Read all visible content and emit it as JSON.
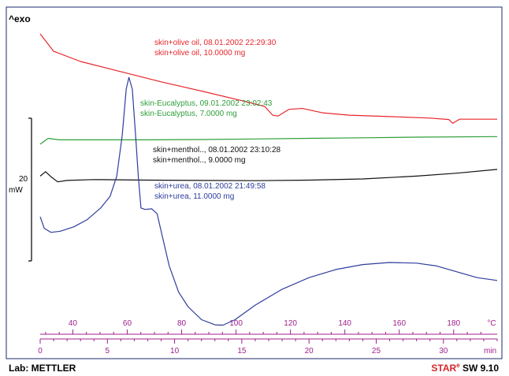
{
  "header": {
    "exo_label": "^exo"
  },
  "footer": {
    "lab_label": "Lab: METTLER",
    "software_star": "STAR",
    "software_sup": "e",
    "software_rest": " SW 9.10"
  },
  "scale_bar": {
    "value": "20",
    "unit": "mW"
  },
  "colors": {
    "olive": "#e8262b",
    "eucalyptus": "#2e9e3a",
    "menthol": "#111111",
    "urea": "#2d3d9c",
    "temp_axis": "#a0208e",
    "time_axis": "#a0208e",
    "frame": "#1e2a6e",
    "scale_bar": "#111111"
  },
  "chart_data": {
    "type": "line",
    "title": "",
    "xlabel": "min",
    "x_range": [
      0,
      34
    ],
    "x_ticks": [
      0,
      5,
      10,
      15,
      20,
      25,
      30
    ],
    "x_unit": "min",
    "temp_axis": {
      "unit": "°C",
      "ticks": [
        40,
        60,
        80,
        100,
        120,
        140,
        160,
        180
      ],
      "range": [
        28,
        196
      ]
    },
    "y_range": [
      0,
      100
    ],
    "series": [
      {
        "name": "skin+olive oil",
        "legend_lines": [
          "skin+olive oil, 08.01.2002 22:29:30",
          "skin+olive oil, 10.0000 mg"
        ],
        "color_key": "olive",
        "points": [
          [
            0,
            97
          ],
          [
            1,
            91
          ],
          [
            3,
            87.5
          ],
          [
            6,
            84
          ],
          [
            9,
            80.5
          ],
          [
            12,
            77.3
          ],
          [
            15,
            74
          ],
          [
            16.7,
            72
          ],
          [
            17.3,
            69
          ],
          [
            17.7,
            68.7
          ],
          [
            18.5,
            71
          ],
          [
            19.5,
            71.3
          ],
          [
            21,
            69.8
          ],
          [
            23,
            69
          ],
          [
            26,
            68.5
          ],
          [
            29,
            68
          ],
          [
            30.4,
            67.5
          ],
          [
            30.7,
            66.2
          ],
          [
            31.2,
            67.6
          ],
          [
            34,
            67.6
          ]
        ]
      },
      {
        "name": "skin-Eucalyptus",
        "legend_lines": [
          "skin-Eucalyptus, 09.01.2002 23:02:43",
          "skin-Eucalyptus, 7.0000 mg"
        ],
        "color_key": "eucalyptus",
        "points": [
          [
            0,
            59
          ],
          [
            0.6,
            61
          ],
          [
            1.4,
            60.5
          ],
          [
            4,
            60.5
          ],
          [
            8,
            60.5
          ],
          [
            12,
            60.6
          ],
          [
            16,
            60.8
          ],
          [
            20,
            61
          ],
          [
            24,
            61.2
          ],
          [
            28,
            61.4
          ],
          [
            34,
            61.6
          ]
        ]
      },
      {
        "name": "skin+menthol..",
        "legend_lines": [
          "skin+menthol.., 08.01.2002 23:10:28",
          "skin+menthol.., 9.0000 mg"
        ],
        "color_key": "menthol",
        "points": [
          [
            0,
            48
          ],
          [
            0.4,
            49.5
          ],
          [
            0.8,
            47.8
          ],
          [
            1.3,
            46
          ],
          [
            2,
            46.5
          ],
          [
            4,
            46.8
          ],
          [
            8,
            46.6
          ],
          [
            12,
            46.5
          ],
          [
            16,
            46.4
          ],
          [
            20,
            46.6
          ],
          [
            24,
            47
          ],
          [
            28,
            48
          ],
          [
            31,
            49
          ],
          [
            34,
            50.3
          ]
        ]
      },
      {
        "name": "skin+urea",
        "legend_lines": [
          "skin+urea, 08.01.2002 21:49:58",
          "skin+urea, 11.0000 mg"
        ],
        "color_key": "urea",
        "points": [
          [
            0,
            34
          ],
          [
            0.3,
            30
          ],
          [
            0.8,
            28.6
          ],
          [
            1.5,
            29
          ],
          [
            2.5,
            30.5
          ],
          [
            3.5,
            33
          ],
          [
            4.5,
            37
          ],
          [
            5.2,
            41
          ],
          [
            5.7,
            48
          ],
          [
            6.1,
            62
          ],
          [
            6.4,
            78
          ],
          [
            6.6,
            82
          ],
          [
            6.85,
            78
          ],
          [
            7.1,
            62
          ],
          [
            7.3,
            48
          ],
          [
            7.5,
            37
          ],
          [
            7.8,
            36.5
          ],
          [
            8.3,
            36.7
          ],
          [
            8.7,
            35
          ],
          [
            9.1,
            27
          ],
          [
            9.6,
            17
          ],
          [
            10.3,
            8
          ],
          [
            11,
            3
          ],
          [
            12,
            -1.5
          ],
          [
            13,
            -3.3
          ],
          [
            13.6,
            -3.4
          ],
          [
            14.5,
            -1.5
          ],
          [
            16,
            3.5
          ],
          [
            18,
            9
          ],
          [
            20,
            13
          ],
          [
            22,
            15.8
          ],
          [
            24,
            17.5
          ],
          [
            26,
            18.2
          ],
          [
            28,
            18
          ],
          [
            29.5,
            17
          ],
          [
            31,
            15
          ],
          [
            32.5,
            13
          ],
          [
            34,
            12
          ]
        ]
      }
    ]
  }
}
